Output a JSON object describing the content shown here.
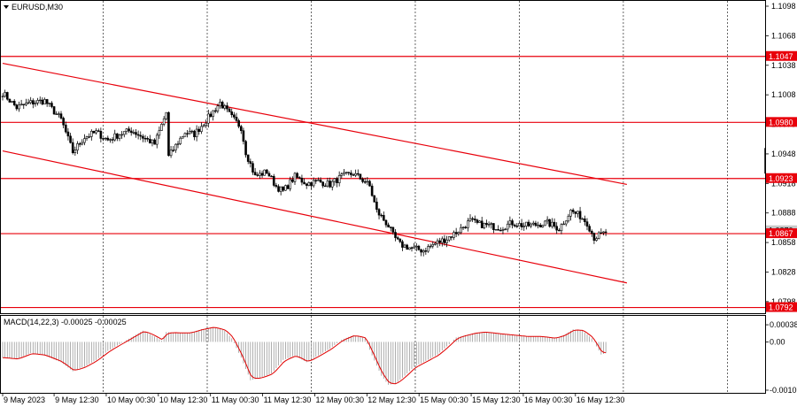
{
  "chart_data": [
    {
      "type": "candlestick",
      "symbol": "EURUSD,M30",
      "ylim": [
        1.0788,
        1.1098
      ],
      "price_ticks": [
        "1.1098",
        "1.1068",
        "1.1038",
        "1.1008",
        "1.0978",
        "1.0948",
        "1.0918",
        "1.0888",
        "1.0858",
        "1.0828",
        "1.0798"
      ],
      "current_price": 1.087,
      "current_price_label": "1.0870",
      "levels": [
        {
          "value": 1.1047,
          "label": "1.1047"
        },
        {
          "value": 1.098,
          "label": "1.0980"
        },
        {
          "value": 1.0923,
          "label": "1.0923"
        },
        {
          "value": 1.0867,
          "label": "1.0867"
        },
        {
          "value": 1.0792,
          "label": "1.0792"
        }
      ],
      "channel_lines": [
        {
          "name": "upper",
          "start": {
            "bar": 0,
            "price": 1.104
          },
          "end": {
            "bar": 267,
            "price": 1.0917
          }
        },
        {
          "name": "lower",
          "start": {
            "bar": 0,
            "price": 1.0951
          },
          "end": {
            "bar": 267,
            "price": 1.0817
          }
        }
      ],
      "time_labels": [
        "9 May 2023",
        "9 May 12:30",
        "10 May 00:30",
        "10 May 12:30",
        "11 May 00:30",
        "11 May 12:30",
        "12 May 00:30",
        "12 May 12:30",
        "15 May 00:30",
        "15 May 12:30",
        "16 May 00:30",
        "16 May 12:30"
      ],
      "session_separators": [
        "10 May 00:30",
        "10 May 12:30",
        "11 May 00:30",
        "11 May 12:30",
        "12 May 00:30",
        "12 May 12:30",
        "15 May 00:30",
        "15 May 12:30",
        "16 May 00:30",
        "16 May 12:30",
        "17 May 00:30"
      ],
      "close_anchors": [
        [
          0,
          1.101
        ],
        [
          6,
          1.0995
        ],
        [
          12,
          1.1
        ],
        [
          18,
          1.1002
        ],
        [
          25,
          1.0983
        ],
        [
          30,
          1.095
        ],
        [
          35,
          1.0965
        ],
        [
          40,
          1.097
        ],
        [
          45,
          1.0962
        ],
        [
          50,
          1.0968
        ],
        [
          55,
          1.0972
        ],
        [
          60,
          1.0965
        ],
        [
          65,
          1.0958
        ],
        [
          70,
          1.099
        ],
        [
          71,
          1.0945
        ],
        [
          75,
          1.096
        ],
        [
          78,
          1.097
        ],
        [
          82,
          1.0968
        ],
        [
          88,
          1.0985
        ],
        [
          93,
          1.1
        ],
        [
          98,
          1.0985
        ],
        [
          102,
          1.0975
        ],
        [
          104,
          1.095
        ],
        [
          108,
          1.0925
        ],
        [
          113,
          1.093
        ],
        [
          117,
          1.0915
        ],
        [
          120,
          1.091
        ],
        [
          125,
          1.0925
        ],
        [
          130,
          1.0918
        ],
        [
          135,
          1.092
        ],
        [
          140,
          1.0917
        ],
        [
          145,
          1.0925
        ],
        [
          150,
          1.0928
        ],
        [
          155,
          1.092
        ],
        [
          157,
          1.0915
        ],
        [
          160,
          1.089
        ],
        [
          165,
          1.0875
        ],
        [
          167,
          1.0865
        ],
        [
          170,
          1.0856
        ],
        [
          175,
          1.0852
        ],
        [
          180,
          1.085
        ],
        [
          185,
          1.0857
        ],
        [
          190,
          1.0862
        ],
        [
          195,
          1.087
        ],
        [
          200,
          1.088
        ],
        [
          203,
          1.0877
        ],
        [
          208,
          1.0875
        ],
        [
          213,
          1.0873
        ],
        [
          218,
          1.0878
        ],
        [
          223,
          1.0875
        ],
        [
          228,
          1.0876
        ],
        [
          233,
          1.0878
        ],
        [
          238,
          1.0872
        ],
        [
          243,
          1.089
        ],
        [
          247,
          1.0885
        ],
        [
          250,
          1.0878
        ],
        [
          253,
          1.0863
        ],
        [
          257,
          1.0867
        ],
        [
          258,
          1.0869
        ]
      ],
      "total_bars": 259,
      "macd": {
        "label": "MACD(14,22,3) -0.00025 -0.00025",
        "ylim": [
          -0.00107,
          0.00044
        ],
        "ticks": [
          {
            "value": 0.00038,
            "label": "0.00038"
          },
          {
            "value": 0.0,
            "label": "0.00"
          },
          {
            "value": -0.00107,
            "label": "-0.00107"
          }
        ],
        "histogram_anchors": [
          [
            0,
            -0.00035
          ],
          [
            6,
            -0.00038
          ],
          [
            12,
            -0.00025
          ],
          [
            18,
            -0.0003
          ],
          [
            25,
            -0.00045
          ],
          [
            30,
            -0.00065
          ],
          [
            35,
            -0.00055
          ],
          [
            40,
            -0.0004
          ],
          [
            45,
            -0.0002
          ],
          [
            50,
            -5e-05
          ],
          [
            55,
            0.0001
          ],
          [
            60,
            0.00025
          ],
          [
            65,
            0.00012
          ],
          [
            68,
            3e-05
          ],
          [
            70,
            0.00022
          ],
          [
            75,
            0.0002
          ],
          [
            80,
            0.0002
          ],
          [
            85,
            0.00028
          ],
          [
            90,
            0.00033
          ],
          [
            95,
            0.00025
          ],
          [
            98,
            8e-05
          ],
          [
            102,
            -0.00035
          ],
          [
            106,
            -0.00085
          ],
          [
            110,
            -0.0008
          ],
          [
            115,
            -0.0007
          ],
          [
            120,
            -0.0004
          ],
          [
            125,
            -0.0003
          ],
          [
            130,
            -0.00045
          ],
          [
            135,
            -0.0003
          ],
          [
            140,
            -0.00015
          ],
          [
            145,
            5e-05
          ],
          [
            150,
            0.00015
          ],
          [
            155,
            8e-05
          ],
          [
            158,
            -0.0003
          ],
          [
            162,
            -0.00075
          ],
          [
            165,
            -0.00095
          ],
          [
            168,
            -0.00093
          ],
          [
            172,
            -0.00075
          ],
          [
            176,
            -0.00055
          ],
          [
            180,
            -0.00045
          ],
          [
            186,
            -0.00028
          ],
          [
            190,
            -0.0001
          ],
          [
            194,
            0.0001
          ],
          [
            198,
            0.00015
          ],
          [
            202,
            0.0002
          ],
          [
            206,
            0.00022
          ],
          [
            212,
            0.00018
          ],
          [
            218,
            0.00015
          ],
          [
            224,
            0.00012
          ],
          [
            230,
            0.00012
          ],
          [
            236,
            8e-05
          ],
          [
            240,
            0.00015
          ],
          [
            244,
            0.00028
          ],
          [
            248,
            0.00025
          ],
          [
            252,
            8e-05
          ],
          [
            256,
            -0.00028
          ],
          [
            258,
            -0.00025
          ]
        ]
      }
    }
  ]
}
